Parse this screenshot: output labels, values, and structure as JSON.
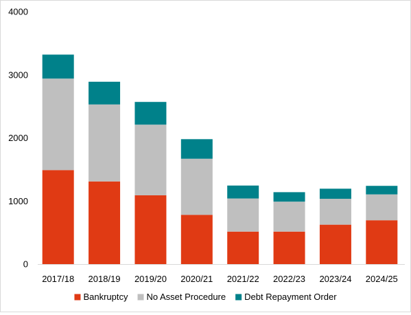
{
  "chart_data": {
    "type": "bar",
    "stacked": true,
    "categories": [
      "2017/18",
      "2018/19",
      "2019/20",
      "2020/21",
      "2021/22",
      "2022/23",
      "2023/24",
      "2024/25"
    ],
    "series": [
      {
        "name": "Bankruptcy",
        "color": "#e03a14",
        "values": [
          1490,
          1310,
          1090,
          780,
          515,
          515,
          625,
          695
        ]
      },
      {
        "name": "No Asset Procedure",
        "color": "#bfbfbf",
        "values": [
          1450,
          1220,
          1120,
          890,
          525,
          475,
          410,
          410
        ]
      },
      {
        "name": "Debt Repayment Order",
        "color": "#00818a",
        "values": [
          380,
          360,
          360,
          310,
          205,
          150,
          160,
          135
        ]
      }
    ],
    "y_ticks": [
      "0",
      "1000",
      "2000",
      "3000",
      "4000"
    ],
    "ylim": [
      0,
      4000
    ],
    "grid": false,
    "legend_position": "bottom",
    "title": "",
    "xlabel": "",
    "ylabel": ""
  }
}
